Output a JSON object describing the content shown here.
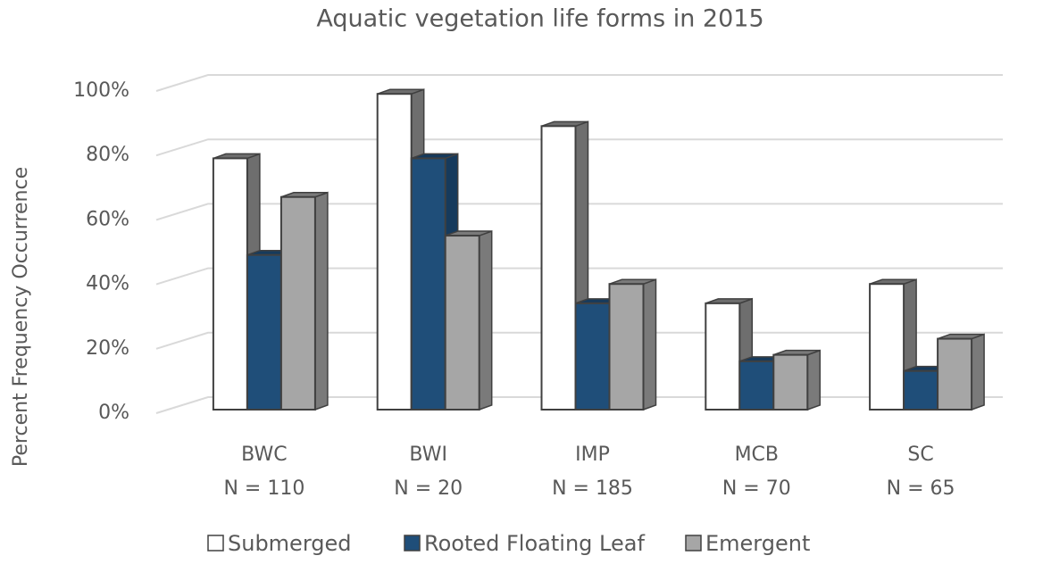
{
  "chart_data": {
    "type": "bar3d",
    "title": "Aquatic vegetation life forms in 2015",
    "y_axis_title": "Percent Frequency Occurrence",
    "categories": [
      "BWC",
      "BWI",
      "IMP",
      "MCB",
      "SC"
    ],
    "category_counts": [
      "N = 110",
      "N = 20",
      "N = 185",
      "N = 70",
      "N = 65"
    ],
    "series": [
      {
        "name": "Submerged",
        "color": "#ffffff",
        "values": [
          78,
          98,
          88,
          33,
          39
        ]
      },
      {
        "name": "Rooted Floating Leaf",
        "color": "#1f4e79",
        "values": [
          48,
          78,
          33,
          15,
          12
        ]
      },
      {
        "name": "Emergent",
        "color": "#a6a6a6",
        "values": [
          66,
          54,
          39,
          17,
          22
        ]
      }
    ],
    "ylim": [
      0,
      100
    ],
    "yticks": [
      {
        "value": 0,
        "label": "0%"
      },
      {
        "value": 20,
        "label": "20%"
      },
      {
        "value": 40,
        "label": "40%"
      },
      {
        "value": 60,
        "label": "60%"
      },
      {
        "value": 80,
        "label": "80%"
      },
      {
        "value": 100,
        "label": "100%"
      }
    ],
    "grid": true
  }
}
